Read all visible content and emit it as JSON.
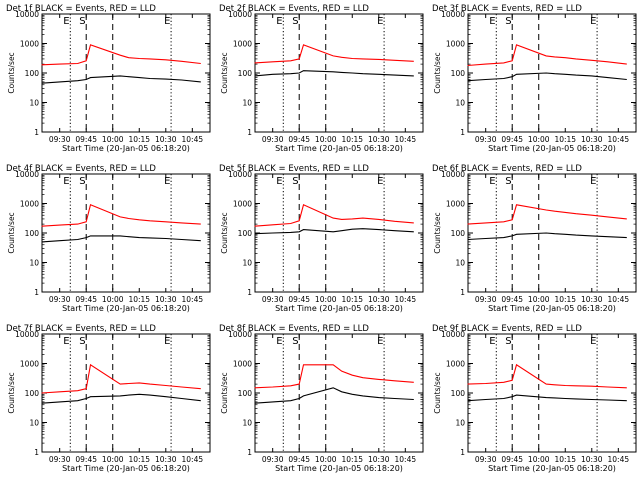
{
  "figure": {
    "ylabel": "Counts/sec",
    "xlabel": "Start Time (20-Jan-05 06:18:20)",
    "x_ticks": [
      "09:30",
      "09:45",
      "10:00",
      "10:15",
      "10:30",
      "10:45"
    ],
    "y_ticks": [
      "1",
      "10",
      "100",
      "1000",
      "10000"
    ],
    "markers": [
      "E",
      "S",
      "E"
    ],
    "colors": {
      "events": "#000000",
      "lld": "#ff0000",
      "background": "#ffffff"
    }
  },
  "chart_data": [
    {
      "type": "line",
      "title": "Det 1f BLACK = Events, RED = LLD",
      "xlabel": "Start Time (20-Jan-05 06:18:20)",
      "ylabel": "Counts/sec",
      "x_range": [
        "09:20",
        "10:55"
      ],
      "ylim": [
        1,
        10000
      ],
      "yscale": "log",
      "series": [
        {
          "name": "Events",
          "color": "#000000",
          "values": [
            [
              9.33,
              45
            ],
            [
              9.5,
              50
            ],
            [
              9.67,
              55
            ],
            [
              9.75,
              60
            ],
            [
              9.79,
              70
            ],
            [
              10.07,
              80
            ],
            [
              10.15,
              75
            ],
            [
              10.25,
              70
            ],
            [
              10.35,
              65
            ],
            [
              10.5,
              62
            ],
            [
              10.65,
              58
            ],
            [
              10.83,
              50
            ]
          ]
        },
        {
          "name": "LLD",
          "color": "#ff0000",
          "values": [
            [
              9.33,
              190
            ],
            [
              9.5,
              200
            ],
            [
              9.67,
              210
            ],
            [
              9.75,
              260
            ],
            [
              9.79,
              900
            ],
            [
              10.07,
              400
            ],
            [
              10.15,
              330
            ],
            [
              10.25,
              310
            ],
            [
              10.35,
              300
            ],
            [
              10.5,
              280
            ],
            [
              10.65,
              250
            ],
            [
              10.83,
              210
            ]
          ]
        }
      ]
    },
    {
      "type": "line",
      "title": "Det 2f BLACK = Events, RED = LLD",
      "xlabel": "Start Time (20-Jan-05 06:18:20)",
      "ylabel": "Counts/sec",
      "x_range": [
        "09:20",
        "10:55"
      ],
      "ylim": [
        1,
        10000
      ],
      "yscale": "log",
      "series": [
        {
          "name": "Events",
          "color": "#000000",
          "values": [
            [
              9.33,
              80
            ],
            [
              9.5,
              90
            ],
            [
              9.67,
              95
            ],
            [
              9.75,
              100
            ],
            [
              9.79,
              120
            ],
            [
              10.07,
              110
            ],
            [
              10.15,
              105
            ],
            [
              10.25,
              100
            ],
            [
              10.35,
              95
            ],
            [
              10.5,
              90
            ],
            [
              10.65,
              85
            ],
            [
              10.83,
              80
            ]
          ]
        },
        {
          "name": "LLD",
          "color": "#ff0000",
          "values": [
            [
              9.33,
              220
            ],
            [
              9.5,
              240
            ],
            [
              9.67,
              260
            ],
            [
              9.75,
              300
            ],
            [
              9.79,
              900
            ],
            [
              10.07,
              380
            ],
            [
              10.15,
              340
            ],
            [
              10.25,
              310
            ],
            [
              10.35,
              300
            ],
            [
              10.5,
              290
            ],
            [
              10.65,
              270
            ],
            [
              10.83,
              250
            ]
          ]
        }
      ]
    },
    {
      "type": "line",
      "title": "Det 3f BLACK = Events, RED = LLD",
      "xlabel": "Start Time (20-Jan-05 06:18:20)",
      "ylabel": "Counts/sec",
      "x_range": [
        "09:20",
        "10:55"
      ],
      "ylim": [
        1,
        10000
      ],
      "yscale": "log",
      "series": [
        {
          "name": "Events",
          "color": "#000000",
          "values": [
            [
              9.33,
              55
            ],
            [
              9.5,
              60
            ],
            [
              9.67,
              65
            ],
            [
              9.75,
              75
            ],
            [
              9.79,
              90
            ],
            [
              10.07,
              100
            ],
            [
              10.15,
              95
            ],
            [
              10.25,
              90
            ],
            [
              10.35,
              85
            ],
            [
              10.5,
              80
            ],
            [
              10.65,
              70
            ],
            [
              10.83,
              60
            ]
          ]
        },
        {
          "name": "LLD",
          "color": "#ff0000",
          "values": [
            [
              9.33,
              180
            ],
            [
              9.5,
              200
            ],
            [
              9.67,
              220
            ],
            [
              9.75,
              260
            ],
            [
              9.79,
              900
            ],
            [
              10.07,
              380
            ],
            [
              10.15,
              350
            ],
            [
              10.25,
              330
            ],
            [
              10.35,
              300
            ],
            [
              10.5,
              270
            ],
            [
              10.65,
              240
            ],
            [
              10.83,
              200
            ]
          ]
        }
      ]
    },
    {
      "type": "line",
      "title": "Det 4f BLACK = Events, RED = LLD",
      "xlabel": "Start Time (20-Jan-05 06:18:20)",
      "ylabel": "Counts/sec",
      "x_range": [
        "09:20",
        "10:55"
      ],
      "ylim": [
        1,
        10000
      ],
      "yscale": "log",
      "series": [
        {
          "name": "Events",
          "color": "#000000",
          "values": [
            [
              9.33,
              50
            ],
            [
              9.5,
              55
            ],
            [
              9.67,
              60
            ],
            [
              9.75,
              70
            ],
            [
              9.79,
              80
            ],
            [
              10.07,
              80
            ],
            [
              10.15,
              75
            ],
            [
              10.25,
              70
            ],
            [
              10.35,
              68
            ],
            [
              10.5,
              65
            ],
            [
              10.65,
              60
            ],
            [
              10.83,
              55
            ]
          ]
        },
        {
          "name": "LLD",
          "color": "#ff0000",
          "values": [
            [
              9.33,
              170
            ],
            [
              9.5,
              185
            ],
            [
              9.67,
              200
            ],
            [
              9.75,
              240
            ],
            [
              9.79,
              900
            ],
            [
              10.07,
              350
            ],
            [
              10.15,
              310
            ],
            [
              10.25,
              280
            ],
            [
              10.35,
              260
            ],
            [
              10.5,
              240
            ],
            [
              10.65,
              220
            ],
            [
              10.83,
              200
            ]
          ]
        }
      ]
    },
    {
      "type": "line",
      "title": "Det 5f BLACK = Events, RED = LLD",
      "xlabel": "Start Time (20-Jan-05 06:18:20)",
      "ylabel": "Counts/sec",
      "x_range": [
        "09:20",
        "10:55"
      ],
      "ylim": [
        1,
        10000
      ],
      "yscale": "log",
      "series": [
        {
          "name": "Events",
          "color": "#000000",
          "values": [
            [
              9.33,
              95
            ],
            [
              9.5,
              100
            ],
            [
              9.67,
              105
            ],
            [
              9.75,
              110
            ],
            [
              9.79,
              130
            ],
            [
              10.07,
              110
            ],
            [
              10.15,
              120
            ],
            [
              10.25,
              135
            ],
            [
              10.35,
              140
            ],
            [
              10.5,
              130
            ],
            [
              10.65,
              120
            ],
            [
              10.83,
              110
            ]
          ]
        },
        {
          "name": "LLD",
          "color": "#ff0000",
          "values": [
            [
              9.33,
              170
            ],
            [
              9.5,
              190
            ],
            [
              9.67,
              210
            ],
            [
              9.75,
              260
            ],
            [
              9.79,
              900
            ],
            [
              10.07,
              320
            ],
            [
              10.15,
              290
            ],
            [
              10.25,
              300
            ],
            [
              10.35,
              320
            ],
            [
              10.5,
              290
            ],
            [
              10.65,
              250
            ],
            [
              10.83,
              220
            ]
          ]
        }
      ]
    },
    {
      "type": "line",
      "title": "Det 6f BLACK = Events, RED = LLD",
      "xlabel": "Start Time (20-Jan-05 06:18:20)",
      "ylabel": "Counts/sec",
      "x_range": [
        "09:20",
        "10:55"
      ],
      "ylim": [
        1,
        10000
      ],
      "yscale": "log",
      "series": [
        {
          "name": "Events",
          "color": "#000000",
          "values": [
            [
              9.33,
              60
            ],
            [
              9.5,
              65
            ],
            [
              9.67,
              70
            ],
            [
              9.75,
              80
            ],
            [
              9.79,
              90
            ],
            [
              10.07,
              100
            ],
            [
              10.15,
              95
            ],
            [
              10.25,
              90
            ],
            [
              10.35,
              85
            ],
            [
              10.5,
              80
            ],
            [
              10.65,
              75
            ],
            [
              10.83,
              70
            ]
          ]
        },
        {
          "name": "LLD",
          "color": "#ff0000",
          "values": [
            [
              9.33,
              200
            ],
            [
              9.5,
              220
            ],
            [
              9.67,
              240
            ],
            [
              9.75,
              280
            ],
            [
              9.79,
              900
            ],
            [
              10.07,
              600
            ],
            [
              10.15,
              550
            ],
            [
              10.25,
              500
            ],
            [
              10.35,
              450
            ],
            [
              10.5,
              400
            ],
            [
              10.65,
              350
            ],
            [
              10.83,
              300
            ]
          ]
        }
      ]
    },
    {
      "type": "line",
      "title": "Det 7f BLACK = Events, RED = LLD",
      "xlabel": "Start Time (20-Jan-05 06:18:20)",
      "ylabel": "Counts/sec",
      "x_range": [
        "09:20",
        "10:55"
      ],
      "ylim": [
        1,
        10000
      ],
      "yscale": "log",
      "series": [
        {
          "name": "Events",
          "color": "#000000",
          "values": [
            [
              9.33,
              45
            ],
            [
              9.5,
              50
            ],
            [
              9.67,
              55
            ],
            [
              9.75,
              65
            ],
            [
              9.79,
              75
            ],
            [
              10.07,
              80
            ],
            [
              10.15,
              85
            ],
            [
              10.25,
              90
            ],
            [
              10.35,
              85
            ],
            [
              10.5,
              75
            ],
            [
              10.65,
              65
            ],
            [
              10.83,
              55
            ]
          ]
        },
        {
          "name": "LLD",
          "color": "#ff0000",
          "values": [
            [
              9.33,
              100
            ],
            [
              9.5,
              110
            ],
            [
              9.67,
              120
            ],
            [
              9.75,
              140
            ],
            [
              9.79,
              900
            ],
            [
              10.07,
              200
            ],
            [
              10.15,
              210
            ],
            [
              10.25,
              220
            ],
            [
              10.35,
              200
            ],
            [
              10.5,
              180
            ],
            [
              10.65,
              160
            ],
            [
              10.83,
              140
            ]
          ]
        }
      ]
    },
    {
      "type": "line",
      "title": "Det 8f BLACK = Events, RED = LLD",
      "xlabel": "Start Time (20-Jan-05 06:18:20)",
      "ylabel": "Counts/sec",
      "x_range": [
        "09:20",
        "10:55"
      ],
      "ylim": [
        1,
        10000
      ],
      "yscale": "log",
      "series": [
        {
          "name": "Events",
          "color": "#000000",
          "values": [
            [
              9.33,
              45
            ],
            [
              9.5,
              50
            ],
            [
              9.67,
              55
            ],
            [
              9.75,
              65
            ],
            [
              9.79,
              80
            ],
            [
              10.07,
              150
            ],
            [
              10.15,
              110
            ],
            [
              10.25,
              90
            ],
            [
              10.35,
              80
            ],
            [
              10.5,
              70
            ],
            [
              10.65,
              65
            ],
            [
              10.83,
              60
            ]
          ]
        },
        {
          "name": "LLD",
          "color": "#ff0000",
          "values": [
            [
              9.33,
              150
            ],
            [
              9.5,
              160
            ],
            [
              9.67,
              175
            ],
            [
              9.75,
              200
            ],
            [
              9.79,
              900
            ],
            [
              10.07,
              900
            ],
            [
              10.15,
              550
            ],
            [
              10.25,
              400
            ],
            [
              10.35,
              330
            ],
            [
              10.5,
              290
            ],
            [
              10.65,
              260
            ],
            [
              10.83,
              230
            ]
          ]
        }
      ]
    },
    {
      "type": "line",
      "title": "Det 9f BLACK = Events, RED = LLD",
      "xlabel": "Start Time (20-Jan-05 06:18:20)",
      "ylabel": "Counts/sec",
      "x_range": [
        "09:20",
        "10:55"
      ],
      "ylim": [
        1,
        10000
      ],
      "yscale": "log",
      "series": [
        {
          "name": "Events",
          "color": "#000000",
          "values": [
            [
              9.33,
              55
            ],
            [
              9.5,
              60
            ],
            [
              9.67,
              65
            ],
            [
              9.75,
              75
            ],
            [
              9.79,
              85
            ],
            [
              10.07,
              70
            ],
            [
              10.15,
              68
            ],
            [
              10.25,
              65
            ],
            [
              10.35,
              63
            ],
            [
              10.5,
              60
            ],
            [
              10.65,
              58
            ],
            [
              10.83,
              55
            ]
          ]
        },
        {
          "name": "LLD",
          "color": "#ff0000",
          "values": [
            [
              9.33,
              200
            ],
            [
              9.5,
              210
            ],
            [
              9.67,
              230
            ],
            [
              9.75,
              270
            ],
            [
              9.79,
              900
            ],
            [
              10.07,
              200
            ],
            [
              10.15,
              190
            ],
            [
              10.25,
              180
            ],
            [
              10.35,
              175
            ],
            [
              10.5,
              170
            ],
            [
              10.65,
              160
            ],
            [
              10.83,
              150
            ]
          ]
        }
      ]
    }
  ]
}
